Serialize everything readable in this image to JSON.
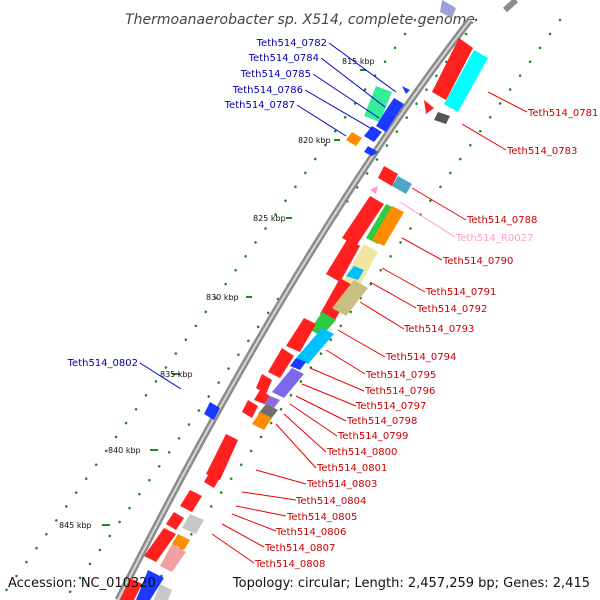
{
  "title": "Thermoanaerobacter sp. X514, complete genome",
  "accession": "Accession: NC_010320",
  "summary": "Topology: circular; Length: 2,457,259 bp; Genes: 2,415",
  "colors": {
    "backbone": "#9a9a9a",
    "forward_label": "#0000aa",
    "reverse_label": "#cc0000",
    "rna_label": "#ff99cc",
    "tick": "#228b22"
  },
  "ticks": [
    "815 kbp",
    "820 kbp",
    "825 kbp",
    "830 kbp",
    "835 kbp",
    "840 kbp",
    "845 kbp"
  ],
  "forward_genes": [
    "Teth514_0782",
    "Teth514_0784",
    "Teth514_0785",
    "Teth514_0786",
    "Teth514_0787",
    "Teth514_0802"
  ],
  "reverse_genes": [
    "Teth514_0781",
    "Teth514_0783",
    "Teth514_0788",
    "Teth514_R0027",
    "Teth514_0790",
    "Teth514_0791",
    "Teth514_0792",
    "Teth514_0793",
    "Teth514_0794",
    "Teth514_0795",
    "Teth514_0796",
    "Teth514_0797",
    "Teth514_0798",
    "Teth514_0799",
    "Teth514_0800",
    "Teth514_0801",
    "Teth514_0803",
    "Teth514_0804",
    "Teth514_0805",
    "Teth514_0806",
    "Teth514_0807",
    "Teth514_0808"
  ]
}
